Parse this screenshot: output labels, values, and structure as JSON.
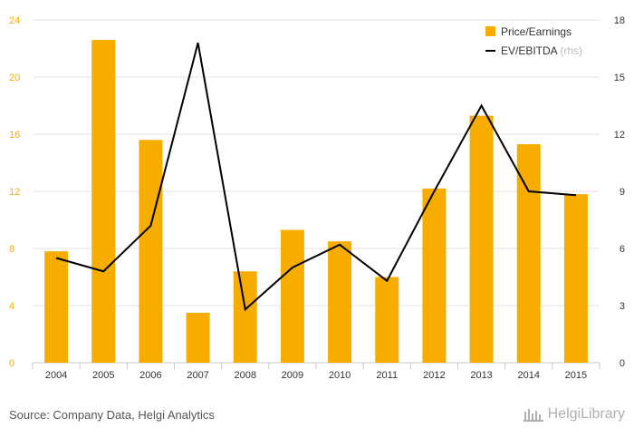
{
  "chart_data": {
    "type": "bar",
    "categories": [
      "2004",
      "2005",
      "2006",
      "2007",
      "2008",
      "2009",
      "2010",
      "2011",
      "2012",
      "2013",
      "2014",
      "2015"
    ],
    "series": [
      {
        "name": "Price/Earnings",
        "type": "bar",
        "axis": "left",
        "color": "#f7ad00",
        "values": [
          7.8,
          22.6,
          15.6,
          3.5,
          6.4,
          9.3,
          8.5,
          6.0,
          12.2,
          17.3,
          15.3,
          11.8
        ]
      },
      {
        "name": "EV/EBITDA",
        "axis_note": "(rhs)",
        "type": "line",
        "axis": "right",
        "color": "#000000",
        "values": [
          5.5,
          4.8,
          7.2,
          16.8,
          2.8,
          5.0,
          6.2,
          4.3,
          9.0,
          13.5,
          9.0,
          8.8
        ]
      }
    ],
    "y_left": {
      "ylim": [
        0,
        24
      ],
      "ticks": [
        0,
        4,
        8,
        12,
        16,
        20,
        24
      ],
      "color": "#f7ad00"
    },
    "y_right": {
      "ylim": [
        0,
        18
      ],
      "ticks": [
        0,
        3,
        6,
        9,
        12,
        15,
        18
      ]
    },
    "grid": true,
    "legend_position": "top-right",
    "title": "",
    "xlabel": "",
    "ylabel": ""
  },
  "footer": {
    "source": "Source: Company Data, Helgi Analytics",
    "brand": "HelgiLibrary"
  }
}
